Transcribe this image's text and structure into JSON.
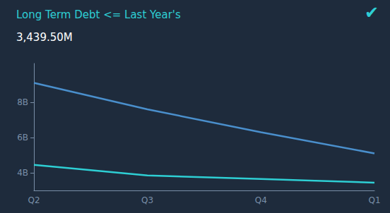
{
  "chart_data": {
    "type": "line",
    "title": "Long Term Debt <= Last Year's",
    "subtitle": "3,439.50M",
    "annotation": "✔",
    "categories": [
      "Q2",
      "Q3",
      "Q4",
      "Q1"
    ],
    "series": [
      {
        "color": "#4a8fcc",
        "values": [
          9.1,
          7.6,
          6.3,
          5.1
        ]
      },
      {
        "color": "#2ecfd4",
        "values": [
          4.45,
          3.85,
          3.65,
          3.44
        ]
      }
    ],
    "ylim": [
      3.0,
      10.2
    ],
    "yticks": [
      {
        "value": 4,
        "label": "4B"
      },
      {
        "value": 6,
        "label": "6B"
      },
      {
        "value": 8,
        "label": "8B"
      }
    ],
    "grid": false
  }
}
